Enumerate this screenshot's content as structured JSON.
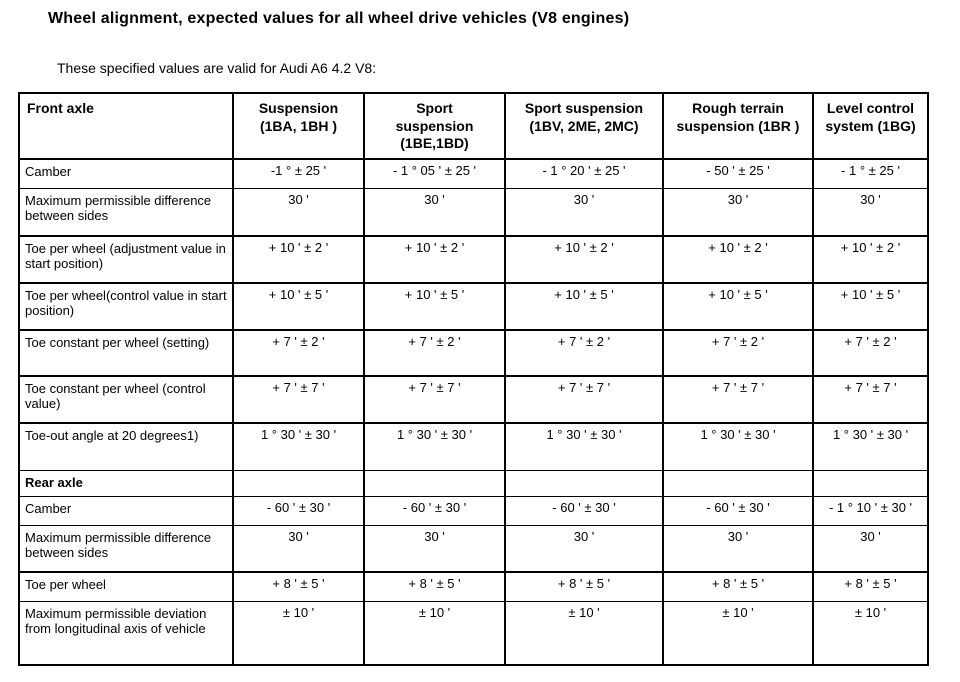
{
  "page": {
    "title": "Wheel alignment, expected values for all wheel drive vehicles (V8 engines)",
    "subtitle": "These specified values are valid for Audi A6 4.2 V8:"
  },
  "table": {
    "columns": [
      {
        "label": "Front axle"
      },
      {
        "label": "Suspension\n(1BA, 1BH )"
      },
      {
        "label": "Sport\nsuspension\n(1BE,1BD)"
      },
      {
        "label": "Sport suspension\n(1BV, 2ME, 2MC)"
      },
      {
        "label": "Rough terrain\nsuspension (1BR )"
      },
      {
        "label": "Level control\nsystem (1BG)"
      }
    ],
    "rows": [
      {
        "label": "Camber",
        "section": false,
        "values": [
          "-1 ° ± 25 '",
          "- 1 ° 05 ' ± 25 '",
          "- 1 ° 20 ' ± 25 '",
          "- 50 ' ± 25 '",
          "- 1 ° ± 25 '"
        ]
      },
      {
        "label": "Maximum permissible difference between sides",
        "section": false,
        "values": [
          "30 '",
          "30 '",
          "30 '",
          "30 '",
          "30 '"
        ]
      },
      {
        "label": "Toe per wheel (adjustment value in start position)",
        "section": false,
        "values": [
          "+ 10 ' ± 2 '",
          "+ 10 ' ± 2 '",
          "+ 10 ' ± 2 '",
          "+ 10 ' ± 2 '",
          "+ 10 ' ± 2 '"
        ]
      },
      {
        "label": "Toe per wheel(control value in start position)",
        "section": false,
        "values": [
          "+ 10 ' ± 5 '",
          "+ 10 ' ± 5 '",
          "+ 10 ' ± 5 '",
          "+ 10 ' ± 5 '",
          "+ 10 ' ± 5 '"
        ]
      },
      {
        "label": "Toe constant per wheel (setting)",
        "section": false,
        "values": [
          "+ 7 ' ± 2 '",
          "+ 7 ' ± 2 '",
          "+ 7 ' ± 2 '",
          "+ 7 ' ± 2 '",
          "+ 7 ' ± 2 '"
        ]
      },
      {
        "label": "Toe constant per wheel (control value)",
        "section": false,
        "values": [
          "+ 7 ' ± 7 '",
          "+ 7 ' ± 7 '",
          "+ 7 ' ± 7 '",
          "+ 7 ' ± 7 '",
          "+ 7 ' ± 7 '"
        ]
      },
      {
        "label": "Toe-out angle at 20 degrees1)",
        "section": false,
        "values": [
          "1 ° 30 ' ± 30 '",
          "1 ° 30 ' ± 30 '",
          "1 ° 30 ' ± 30 '",
          "1 ° 30 ' ± 30 '",
          "1 ° 30 ' ± 30 '"
        ]
      },
      {
        "label": "Rear axle",
        "section": true,
        "values": [
          "",
          "",
          "",
          "",
          ""
        ]
      },
      {
        "label": "Camber",
        "section": false,
        "values": [
          "- 60 ' ± 30 '",
          "- 60 ' ± 30 '",
          "- 60 ' ± 30 '",
          "- 60 ' ± 30 '",
          "- 1 ° 10 ' ± 30 '"
        ]
      },
      {
        "label": "Maximum permissible difference between sides",
        "section": false,
        "values": [
          "30 '",
          "30 '",
          "30 '",
          "30 '",
          "30 '"
        ]
      },
      {
        "label": "Toe per wheel",
        "section": false,
        "values": [
          "+ 8 ' ± 5 '",
          "+ 8 ' ± 5 '",
          "+ 8 ' ± 5 '",
          "+ 8 ' ± 5 '",
          "+ 8 ' ± 5 '"
        ]
      },
      {
        "label": "Maximum permissible deviation from longitudinal axis of vehicle",
        "section": false,
        "values": [
          "± 10 '",
          "± 10 '",
          "± 10 '",
          "± 10 '",
          "± 10 '"
        ]
      }
    ]
  }
}
